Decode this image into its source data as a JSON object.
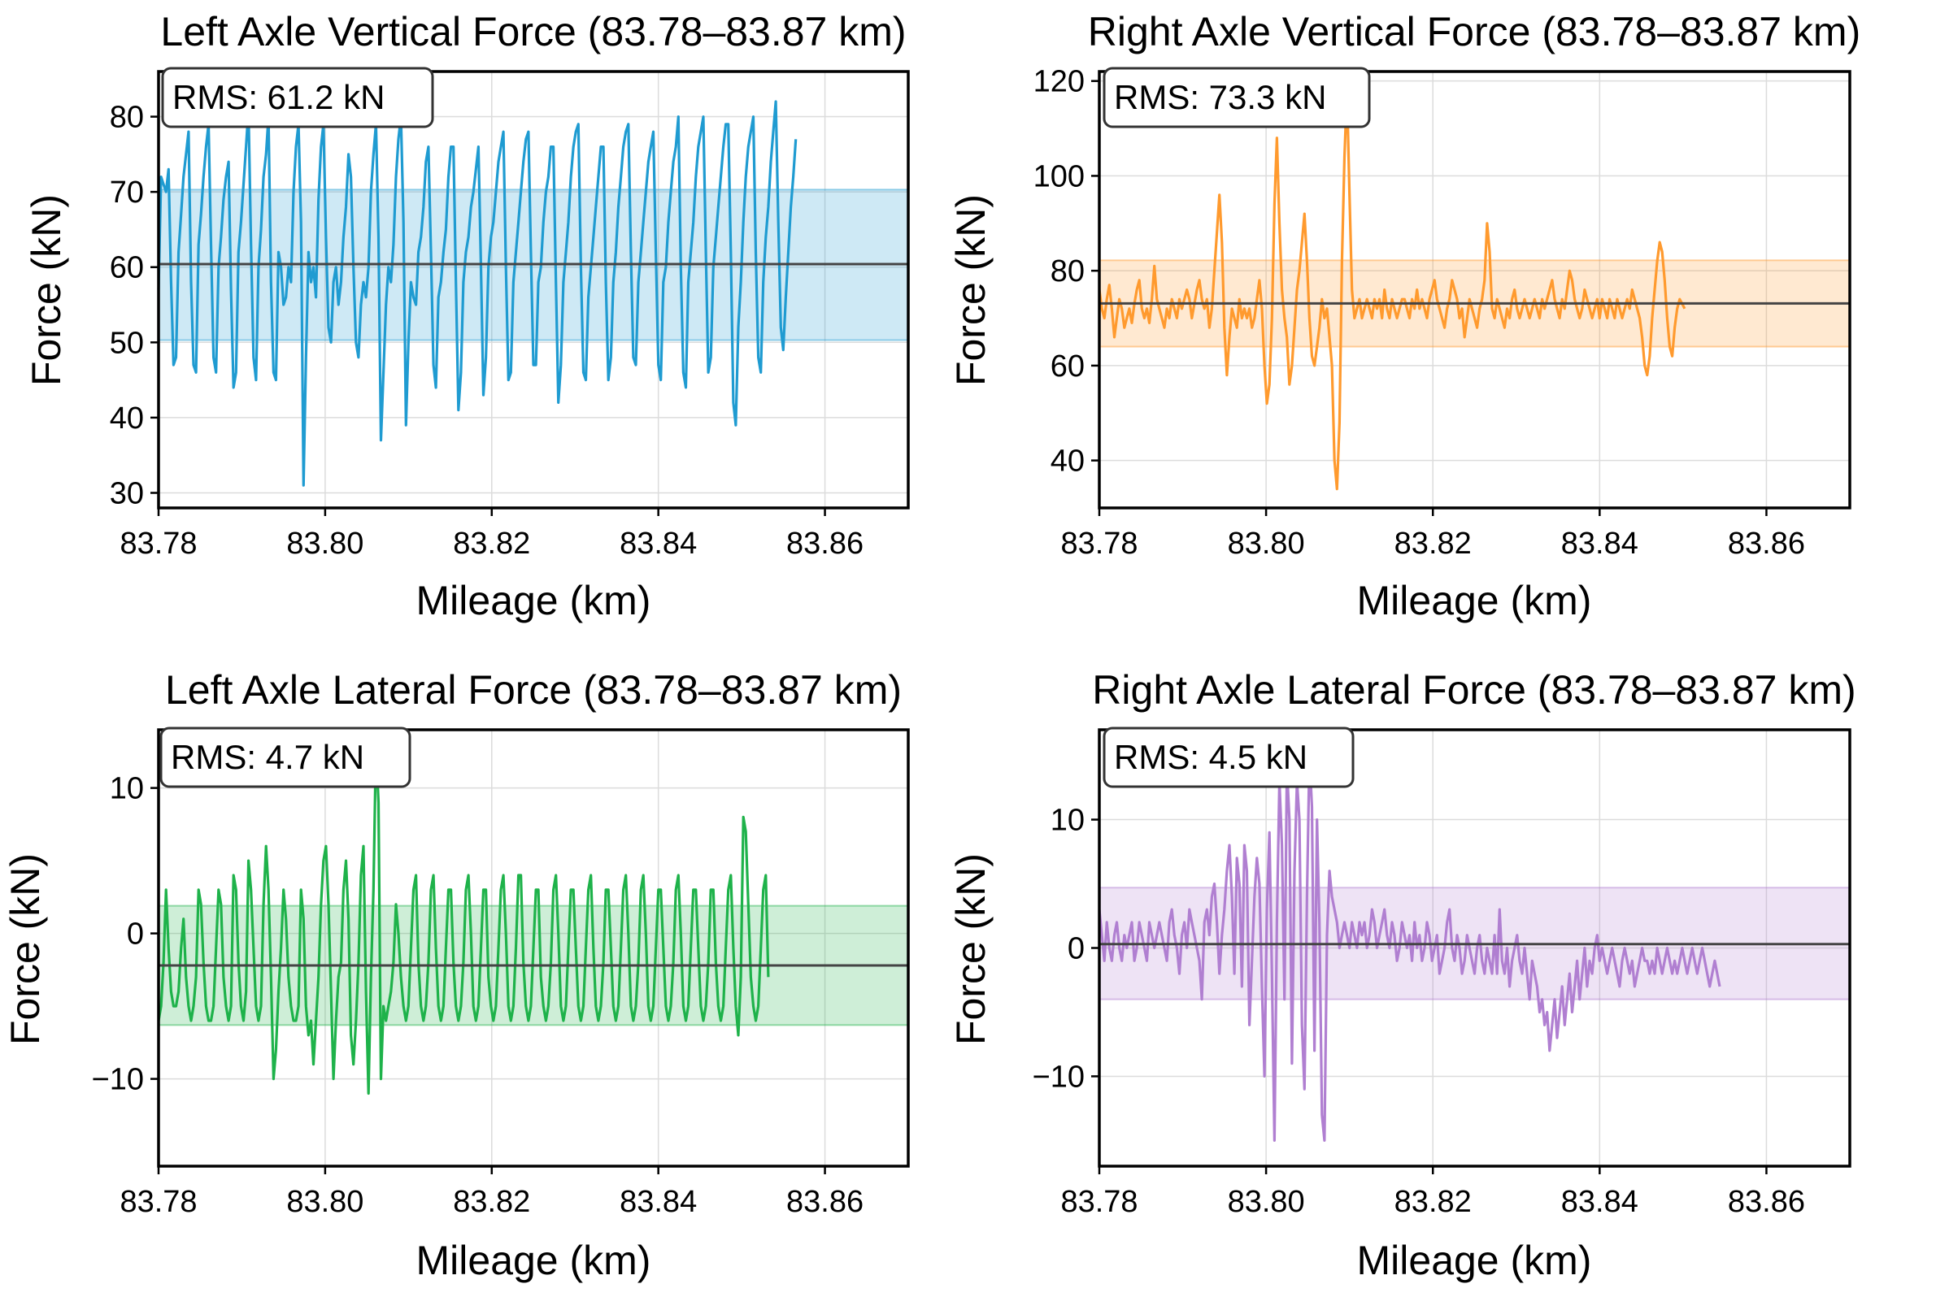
{
  "figure": {
    "xlabel": "Mileage (km)",
    "ylabel": "Force (kN)"
  },
  "colors": {
    "left_vertical": "#1f9bd1",
    "right_vertical": "#ff9a2e",
    "left_lateral": "#1eb24a",
    "right_lateral": "#b07fd1",
    "mean_line": "#444444"
  },
  "chart_data": [
    {
      "id": "lv",
      "type": "line",
      "title": "Left Axle Vertical Force (83.78–83.87 km)",
      "xlabel": "Mileage (km)",
      "ylabel": "Force (kN)",
      "rms_label": "RMS: 61.2 kN",
      "rms": 61.2,
      "mean": 60.4,
      "band": [
        50.3,
        70.3
      ],
      "xlim": [
        83.78,
        83.87
      ],
      "ylim": [
        28,
        86
      ],
      "xticks": [
        83.78,
        83.8,
        83.82,
        83.84,
        83.86
      ],
      "xtick_labels": [
        "83.78",
        "83.80",
        "83.82",
        "83.84",
        "83.86"
      ],
      "yticks": [
        30,
        40,
        50,
        60,
        70,
        80
      ],
      "ytick_labels": [
        "30",
        "40",
        "50",
        "60",
        "70",
        "80"
      ],
      "series": {
        "color": "#1f9bd1",
        "x_start": 83.78,
        "x_step": 0.0003,
        "values": [
          57,
          72,
          71,
          70,
          73,
          58,
          47,
          48,
          62,
          67,
          72,
          75,
          78,
          58,
          47,
          46,
          63,
          67,
          72,
          76,
          79,
          63,
          48,
          46,
          60,
          64,
          69,
          72,
          74,
          57,
          44,
          46,
          62,
          66,
          71,
          76,
          81,
          63,
          48,
          45,
          60,
          65,
          72,
          75,
          80,
          58,
          46,
          45,
          62,
          60,
          55,
          56,
          60,
          58,
          70,
          76,
          79,
          66,
          31,
          48,
          62,
          58,
          60,
          56,
          69,
          76,
          79,
          64,
          52,
          50,
          58,
          60,
          55,
          58,
          64,
          68,
          75,
          72,
          60,
          50,
          48,
          55,
          58,
          56,
          60,
          70,
          75,
          79,
          64,
          37,
          46,
          55,
          60,
          58,
          63,
          72,
          77,
          80,
          66,
          39,
          50,
          58,
          56,
          55,
          62,
          64,
          68,
          74,
          76,
          62,
          47,
          44,
          56,
          58,
          62,
          65,
          72,
          76,
          76,
          58,
          41,
          46,
          58,
          62,
          64,
          68,
          70,
          73,
          76,
          60,
          43,
          48,
          60,
          64,
          66,
          70,
          74,
          76,
          78,
          60,
          45,
          46,
          58,
          62,
          66,
          70,
          74,
          77,
          78,
          62,
          47,
          47,
          58,
          60,
          66,
          70,
          72,
          76,
          76,
          58,
          42,
          47,
          58,
          62,
          66,
          72,
          76,
          78,
          79,
          60,
          46,
          45,
          56,
          60,
          64,
          68,
          72,
          76,
          76,
          58,
          45,
          48,
          58,
          62,
          68,
          72,
          76,
          78,
          79,
          62,
          48,
          47,
          58,
          62,
          66,
          70,
          74,
          76,
          78,
          62,
          47,
          45,
          58,
          60,
          66,
          70,
          74,
          76,
          80,
          60,
          46,
          44,
          58,
          62,
          66,
          72,
          76,
          78,
          80,
          62,
          46,
          48,
          60,
          64,
          68,
          72,
          76,
          79,
          79,
          62,
          42,
          39,
          52,
          58,
          66,
          72,
          76,
          78,
          80,
          62,
          48,
          46,
          58,
          64,
          68,
          74,
          78,
          82,
          66,
          52,
          49,
          56,
          62,
          68,
          72,
          77
        ]
      }
    },
    {
      "id": "rv",
      "type": "line",
      "title": "Right Axle Vertical Force (83.78–83.87 km)",
      "xlabel": "Mileage (km)",
      "ylabel": "Force (kN)",
      "rms_label": "RMS: 73.3 kN",
      "rms": 73.3,
      "mean": 73.1,
      "band": [
        64.0,
        82.2
      ],
      "xlim": [
        83.78,
        83.87
      ],
      "ylim": [
        30,
        122
      ],
      "xticks": [
        83.78,
        83.8,
        83.82,
        83.84,
        83.86
      ],
      "xtick_labels": [
        "83.78",
        "83.80",
        "83.82",
        "83.84",
        "83.86"
      ],
      "yticks": [
        40,
        60,
        80,
        100,
        120
      ],
      "ytick_labels": [
        "40",
        "60",
        "80",
        "100",
        "120"
      ],
      "series": {
        "color": "#ff9a2e",
        "x_start": 83.78,
        "x_step": 0.0003,
        "values": [
          76,
          72,
          70,
          74,
          77,
          72,
          66,
          70,
          74,
          72,
          68,
          70,
          72,
          69,
          73,
          76,
          78,
          72,
          70,
          72,
          69,
          74,
          81,
          74,
          72,
          70,
          68,
          72,
          70,
          74,
          72,
          70,
          74,
          72,
          74,
          76,
          74,
          70,
          73,
          76,
          78,
          74,
          72,
          74,
          68,
          72,
          80,
          88,
          96,
          86,
          68,
          58,
          66,
          72,
          70,
          68,
          74,
          70,
          72,
          70,
          72,
          68,
          70,
          74,
          78,
          72,
          60,
          52,
          56,
          70,
          94,
          108,
          90,
          76,
          70,
          66,
          56,
          60,
          68,
          76,
          80,
          86,
          92,
          82,
          70,
          62,
          60,
          64,
          68,
          74,
          70,
          72,
          66,
          60,
          40,
          34,
          48,
          82,
          104,
          118,
          96,
          76,
          70,
          72,
          74,
          70,
          72,
          74,
          72,
          70,
          74,
          72,
          74,
          70,
          76,
          72,
          70,
          74,
          72,
          70,
          72,
          74,
          74,
          72,
          70,
          74,
          72,
          76,
          72,
          74,
          72,
          70,
          74,
          76,
          78,
          74,
          72,
          70,
          68,
          72,
          74,
          78,
          76,
          74,
          70,
          72,
          66,
          70,
          74,
          72,
          70,
          68,
          72,
          74,
          78,
          90,
          84,
          72,
          70,
          74,
          72,
          70,
          68,
          72,
          70,
          74,
          76,
          72,
          70,
          72,
          74,
          72,
          70,
          72,
          74,
          72,
          70,
          74,
          72,
          74,
          76,
          78,
          74,
          72,
          70,
          74,
          72,
          76,
          80,
          78,
          74,
          72,
          70,
          72,
          76,
          74,
          72,
          70,
          72,
          74,
          70,
          74,
          72,
          70,
          74,
          72,
          70,
          74,
          72,
          70,
          72,
          74,
          72,
          76,
          74,
          72,
          70,
          66,
          60,
          58,
          62,
          70,
          76,
          82,
          86,
          84,
          78,
          70,
          64,
          62,
          68,
          72,
          74,
          73,
          72
        ]
      }
    },
    {
      "id": "ll",
      "type": "line",
      "title": "Left Axle Lateral Force (83.78–83.87 km)",
      "xlabel": "Mileage (km)",
      "ylabel": "Force (kN)",
      "rms_label": "RMS: 4.7 kN",
      "rms": 4.7,
      "mean": -2.2,
      "band": [
        -6.3,
        1.9
      ],
      "xlim": [
        83.78,
        83.87
      ],
      "ylim": [
        -16,
        14
      ],
      "xticks": [
        83.78,
        83.8,
        83.82,
        83.84,
        83.86
      ],
      "xtick_labels": [
        "83.78",
        "83.80",
        "83.82",
        "83.84",
        "83.86"
      ],
      "yticks": [
        -10,
        0,
        10
      ],
      "ytick_labels": [
        "−10",
        "0",
        "10"
      ],
      "series": {
        "color": "#1eb24a",
        "x_start": 83.78,
        "x_step": 0.0003,
        "values": [
          -6,
          -5,
          -2,
          3,
          -1,
          -4,
          -5,
          -5,
          -4,
          -1,
          1,
          -3,
          -5,
          -6,
          -5,
          -3,
          3,
          2,
          -2,
          -5,
          -6,
          -6,
          -5,
          -1,
          3,
          2,
          -3,
          -5,
          -6,
          -5,
          4,
          3,
          -2,
          -5,
          -6,
          -4,
          5,
          3,
          -1,
          -5,
          -6,
          -5,
          2,
          6,
          3,
          -3,
          -10,
          -8,
          -4,
          -1,
          3,
          1,
          -3,
          -5,
          -6,
          -6,
          -5,
          3,
          1,
          -5,
          -7,
          -6,
          -9,
          -6,
          -3,
          2,
          5,
          6,
          2,
          -4,
          -10,
          -6,
          -3,
          -2,
          3,
          5,
          1,
          -7,
          -9,
          -6,
          -2,
          4,
          6,
          -4,
          -11,
          -3,
          3,
          13,
          9,
          -10,
          -5,
          -6,
          -5,
          -4,
          -2,
          2,
          0,
          -3,
          -5,
          -6,
          -5,
          -1,
          3,
          4,
          -2,
          -5,
          -6,
          -5,
          -2,
          3,
          4,
          -1,
          -5,
          -6,
          -5,
          -1,
          3,
          3,
          -2,
          -5,
          -6,
          -5,
          -2,
          3,
          4,
          0,
          -5,
          -6,
          -5,
          -1,
          3,
          3,
          -3,
          -5,
          -6,
          -5,
          -1,
          3,
          4,
          0,
          -5,
          -6,
          -5,
          -1,
          4,
          4,
          -2,
          -5,
          -6,
          -5,
          -1,
          3,
          3,
          -3,
          -5,
          -6,
          -5,
          -2,
          3,
          4,
          0,
          -5,
          -6,
          -5,
          -1,
          3,
          3,
          -1,
          -5,
          -6,
          -5,
          -1,
          3,
          4,
          -1,
          -5,
          -6,
          -5,
          -2,
          3,
          3,
          -1,
          -5,
          -6,
          -5,
          -1,
          3,
          4,
          0,
          -5,
          -6,
          -5,
          -2,
          3,
          4,
          0,
          -5,
          -6,
          -5,
          -1,
          3,
          3,
          -1,
          -5,
          -6,
          -5,
          -2,
          3,
          4,
          0,
          -5,
          -6,
          -5,
          -1,
          3,
          3,
          -1,
          -5,
          -6,
          -5,
          -2,
          3,
          3,
          -2,
          -5,
          -6,
          -5,
          -1,
          3,
          4,
          -1,
          -5,
          -7,
          -3,
          8,
          7,
          2,
          -3,
          -5,
          -6,
          -5,
          -1,
          3,
          4,
          -3
        ]
      }
    },
    {
      "id": "rl",
      "type": "line",
      "title": "Right Axle Lateral Force (83.78–83.87 km)",
      "xlabel": "Mileage (km)",
      "ylabel": "Force (kN)",
      "rms_label": "RMS: 4.5 kN",
      "rms": 4.5,
      "mean": 0.3,
      "band": [
        -4.0,
        4.7
      ],
      "xlim": [
        83.78,
        83.87
      ],
      "ylim": [
        -17,
        17
      ],
      "xticks": [
        83.78,
        83.8,
        83.82,
        83.84,
        83.86
      ],
      "xtick_labels": [
        "83.78",
        "83.80",
        "83.82",
        "83.84",
        "83.86"
      ],
      "yticks": [
        -10,
        0,
        10
      ],
      "ytick_labels": [
        "−10",
        "0",
        "10"
      ],
      "series": {
        "color": "#b07fd1",
        "x_start": 83.78,
        "x_step": 0.0003,
        "values": [
          3,
          1,
          -1,
          2,
          0,
          -1,
          1,
          2,
          0,
          -1,
          1,
          0,
          1,
          2,
          -1,
          0,
          2,
          1,
          0,
          -1,
          2,
          1,
          0,
          1,
          2,
          1,
          0,
          -1,
          2,
          3,
          1,
          0,
          -2,
          1,
          2,
          0,
          3,
          2,
          1,
          0,
          -1,
          -4,
          2,
          3,
          1,
          4,
          5,
          2,
          -2,
          1,
          3,
          6,
          8,
          4,
          -2,
          7,
          5,
          -3,
          8,
          6,
          -6,
          -1,
          4,
          7,
          5,
          -3,
          -10,
          3,
          9,
          -2,
          -15,
          2,
          13,
          8,
          -4,
          14,
          10,
          -9,
          6,
          13,
          10,
          -6,
          -11,
          4,
          15,
          11,
          -8,
          10,
          2,
          -13,
          -15,
          1,
          6,
          4,
          3,
          2,
          0,
          1,
          2,
          1,
          0,
          2,
          1,
          0,
          2,
          1,
          2,
          0,
          1,
          3,
          2,
          0,
          1,
          2,
          3,
          1,
          0,
          2,
          1,
          -1,
          0,
          2,
          1,
          0,
          1,
          -1,
          2,
          0,
          1,
          -1,
          0,
          2,
          1,
          -1,
          0,
          1,
          -2,
          -1,
          0,
          2,
          3,
          0,
          -1,
          1,
          0,
          -2,
          -1,
          1,
          0,
          -1,
          -2,
          0,
          1,
          -1,
          -2,
          0,
          -1,
          -2,
          1,
          -2,
          3,
          -1,
          -2,
          0,
          -3,
          -1,
          0,
          1,
          -1,
          -2,
          0,
          -2,
          -4,
          -1,
          -2,
          -3,
          -5,
          -4,
          -6,
          -5,
          -8,
          -6,
          -4,
          -7,
          -5,
          -3,
          -6,
          -4,
          -2,
          -5,
          -3,
          -1,
          -4,
          -2,
          0,
          -3,
          -1,
          -2,
          0,
          1,
          -1,
          0,
          -1,
          -2,
          -1,
          0,
          -1,
          -2,
          -3,
          -1,
          0,
          -1,
          -2,
          -1,
          -3,
          -2,
          -1,
          0,
          -1,
          -1,
          -2,
          -1,
          -2,
          0,
          -1,
          -2,
          -1,
          0,
          -1,
          -2,
          -1,
          -2,
          -1,
          0,
          -1,
          -2,
          -1,
          0,
          -1,
          -2,
          -1,
          0,
          -1,
          -2,
          -3,
          -2,
          -1,
          -2,
          -3
        ]
      }
    }
  ]
}
